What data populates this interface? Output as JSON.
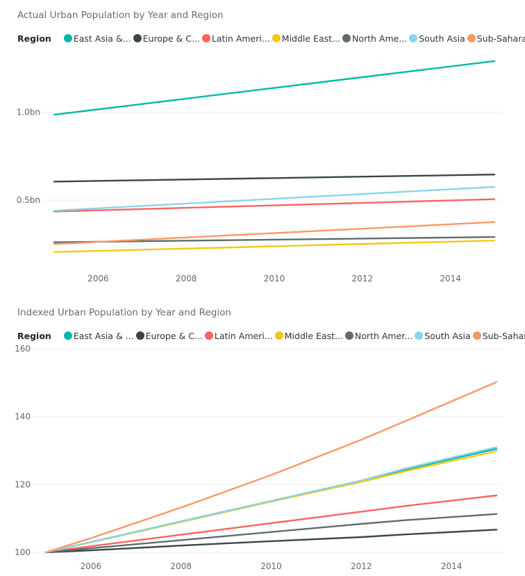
{
  "chart_data": [
    {
      "type": "line",
      "title": "Actual Urban Population by Year and Region",
      "legend_title": "Region",
      "legend_position": "top-left",
      "xlabel": "",
      "ylabel": "",
      "x": [
        2005,
        2015
      ],
      "xticks": [
        2006,
        2008,
        2010,
        2012,
        2014
      ],
      "yticks": [
        {
          "value": 0.5,
          "label": "0.5bn"
        },
        {
          "value": 1.0,
          "label": "1.0bn"
        }
      ],
      "ylim": [
        0.105,
        1.4
      ],
      "xlim": [
        2005,
        2015
      ],
      "grid": true,
      "series": [
        {
          "name": "East Asia &...",
          "color": "#01B8AA",
          "values": [
            0.985,
            1.29
          ]
        },
        {
          "name": "Europe & C...",
          "color": "#374649",
          "values": [
            0.605,
            0.645
          ]
        },
        {
          "name": "Latin Ameri...",
          "color": "#FD625E",
          "values": [
            0.435,
            0.505
          ]
        },
        {
          "name": "Middle East...",
          "color": "#F2C80F",
          "values": [
            0.205,
            0.27
          ]
        },
        {
          "name": "North Ame...",
          "color": "#5F6B6D",
          "values": [
            0.26,
            0.29
          ]
        },
        {
          "name": "South Asia",
          "color": "#8AD4EB",
          "values": [
            0.44,
            0.575
          ]
        },
        {
          "name": "Sub-Sahara...",
          "color": "#FE9666",
          "values": [
            0.25,
            0.375
          ]
        }
      ]
    },
    {
      "type": "line",
      "title": "Indexed Urban Population by Year and Region",
      "legend_title": "Region",
      "legend_position": "top-left",
      "xlabel": "",
      "ylabel": "",
      "x": [
        2005,
        2006,
        2008,
        2010,
        2012,
        2013,
        2015
      ],
      "xticks": [
        2006,
        2008,
        2010,
        2012,
        2014
      ],
      "yticks": [
        {
          "value": 100,
          "label": "100"
        },
        {
          "value": 120,
          "label": "120"
        },
        {
          "value": 140,
          "label": "140"
        },
        {
          "value": 160,
          "label": "160"
        }
      ],
      "ylim": [
        100,
        160
      ],
      "xlim": [
        2005,
        2015
      ],
      "grid": true,
      "series": [
        {
          "name": "East Asia & ...",
          "color": "#01B8AA",
          "values": [
            100,
            103,
            109,
            115,
            121,
            124.5,
            130.5
          ]
        },
        {
          "name": "Europe & C...",
          "color": "#374649",
          "values": [
            100,
            100.6,
            102,
            103.3,
            104.5,
            105.3,
            106.7
          ]
        },
        {
          "name": "Latin Ameri...",
          "color": "#FD625E",
          "values": [
            100,
            101.8,
            105.2,
            108.6,
            112.0,
            113.7,
            116.8
          ]
        },
        {
          "name": "Middle East...",
          "color": "#F2C80F",
          "values": [
            100,
            103,
            109,
            115,
            120.8,
            124,
            129.8
          ]
        },
        {
          "name": "North Amer...",
          "color": "#5F6B6D",
          "values": [
            100,
            101.2,
            103.6,
            106,
            108.4,
            109.5,
            111.3
          ]
        },
        {
          "name": "South Asia",
          "color": "#8AD4EB",
          "values": [
            100,
            103.1,
            109.2,
            115.2,
            121.2,
            124.8,
            131
          ]
        },
        {
          "name": "Sub-Sahara...",
          "color": "#FE9666",
          "values": [
            100,
            104.2,
            113.2,
            122.8,
            133.2,
            138.8,
            150.2
          ]
        }
      ]
    }
  ]
}
